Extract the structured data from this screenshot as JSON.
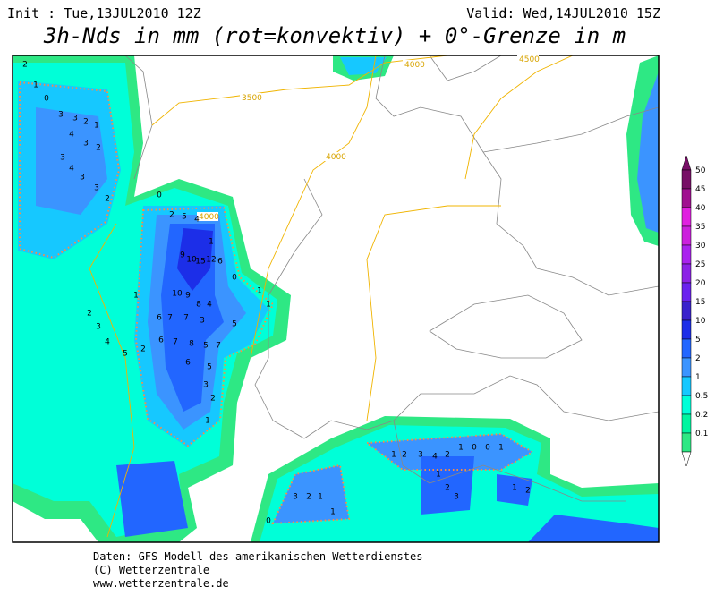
{
  "header": {
    "init": "Init : Tue,13JUL2010 12Z",
    "valid": "Valid: Wed,14JUL2010 15Z",
    "title": "3h-Nds in mm (rot=konvektiv) + 0°-Grenze in m"
  },
  "contour_labels": [
    "3500",
    "4000",
    "4500",
    "4000",
    "4000"
  ],
  "grid_values": [
    "2",
    "1",
    "0",
    "3",
    "3",
    "2",
    "1",
    "4",
    "3",
    "2",
    "3",
    "4",
    "3",
    "3",
    "2",
    "0",
    "2",
    "5",
    "4",
    "1",
    "9",
    "10",
    "15",
    "12",
    "6",
    "10",
    "9",
    "8",
    "4",
    "6",
    "7",
    "7",
    "3",
    "5",
    "6",
    "7",
    "8",
    "5",
    "7",
    "6",
    "5",
    "3",
    "2",
    "1",
    "0",
    "1",
    "1",
    "1",
    "2",
    "3",
    "4",
    "5",
    "2",
    "3",
    "2",
    "1",
    "1",
    "0",
    "1",
    "2",
    "3",
    "4",
    "2",
    "1",
    "0",
    "0",
    "1",
    "1",
    "2",
    "3",
    "1",
    "2"
  ],
  "colorbar": {
    "labels": [
      "50",
      "45",
      "40",
      "35",
      "30",
      "25",
      "20",
      "15",
      "10",
      "5",
      "2",
      "1",
      "0.5",
      "0.2",
      "0.1"
    ],
    "colors": [
      "#770f66",
      "#a01090",
      "#e020e0",
      "#cc20dd",
      "#aa22ee",
      "#8c22e6",
      "#6a22ee",
      "#3a22cc",
      "#1c2ee8",
      "#2266ff",
      "#3b94ff",
      "#16c8ff",
      "#00ffd8",
      "#00f5a0",
      "#2ee884"
    ]
  },
  "footer": [
    "Daten: GFS-Modell des amerikanischen Wetterdienstes",
    "(C) Wetterzentrale",
    "www.wetterzentrale.de"
  ]
}
